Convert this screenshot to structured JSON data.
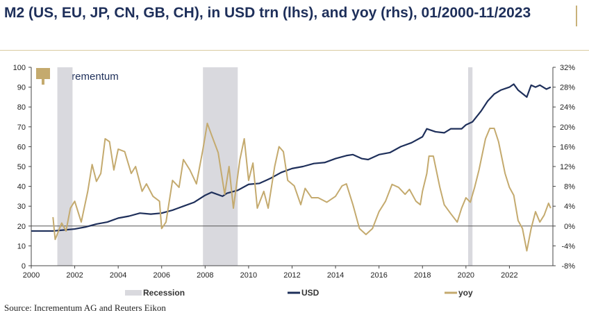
{
  "title": "M2 (US, EU, JP, CN, GB, CH), in USD trn (lhs), and yoy (rhs), 01/2000-11/2023",
  "source": "Source: Incrementum AG and Reuters Eikon",
  "logo_text": "incrementum",
  "colors": {
    "usd": "#1e2f5a",
    "yoy": "#c4aa6e",
    "recession": "#d9d9de",
    "title": "#1e2f5a"
  },
  "chart_data": {
    "type": "line",
    "title": "M2 (US, EU, JP, CN, GB, CH), in USD trn (lhs), and yoy (rhs), 01/2000-11/2023",
    "xlim": [
      2000,
      2024
    ],
    "x_ticks": [
      "2000",
      "2002",
      "2004",
      "2006",
      "2008",
      "2010",
      "2012",
      "2014",
      "2016",
      "2018",
      "2020",
      "2022"
    ],
    "ylim_left": [
      0,
      100
    ],
    "y_ticks_left": [
      "0",
      "10",
      "20",
      "30",
      "40",
      "50",
      "60",
      "70",
      "80",
      "90",
      "100"
    ],
    "ylim_right": [
      -8,
      32
    ],
    "y_ticks_right": [
      "-8%",
      "-4%",
      "0%",
      "4%",
      "8%",
      "12%",
      "16%",
      "20%",
      "24%",
      "28%",
      "32%"
    ],
    "legend": {
      "position": "bottom",
      "entries": [
        "Recession",
        "USD",
        "yoy"
      ]
    },
    "recessions": [
      [
        2001.2,
        2001.9
      ],
      [
        2007.9,
        2009.5
      ],
      [
        2020.1,
        2020.3
      ]
    ],
    "series": [
      {
        "name": "USD",
        "axis": "left",
        "points": [
          [
            2000,
            17.5
          ],
          [
            2001,
            17.5
          ],
          [
            2001.5,
            18
          ],
          [
            2002,
            18.5
          ],
          [
            2002.5,
            19.5
          ],
          [
            2003,
            21
          ],
          [
            2003.5,
            22
          ],
          [
            2004,
            24
          ],
          [
            2004.5,
            25
          ],
          [
            2005,
            26.5
          ],
          [
            2005.5,
            26
          ],
          [
            2006,
            26.5
          ],
          [
            2006.5,
            28
          ],
          [
            2007,
            30
          ],
          [
            2007.5,
            32
          ],
          [
            2008,
            35.5
          ],
          [
            2008.3,
            37
          ],
          [
            2008.8,
            35
          ],
          [
            2009,
            36.5
          ],
          [
            2009.5,
            38
          ],
          [
            2010,
            41
          ],
          [
            2010.5,
            41.5
          ],
          [
            2011,
            44
          ],
          [
            2011.5,
            47
          ],
          [
            2012,
            49
          ],
          [
            2012.5,
            50
          ],
          [
            2013,
            51.5
          ],
          [
            2013.5,
            52
          ],
          [
            2014,
            54
          ],
          [
            2014.5,
            55.5
          ],
          [
            2014.8,
            56
          ],
          [
            2015.2,
            54
          ],
          [
            2015.5,
            53.5
          ],
          [
            2016,
            56
          ],
          [
            2016.5,
            57
          ],
          [
            2017,
            60
          ],
          [
            2017.5,
            62
          ],
          [
            2018,
            65
          ],
          [
            2018.2,
            69
          ],
          [
            2018.6,
            67.5
          ],
          [
            2019,
            67
          ],
          [
            2019.3,
            69
          ],
          [
            2019.8,
            69
          ],
          [
            2020,
            71
          ],
          [
            2020.3,
            72.5
          ],
          [
            2020.7,
            78
          ],
          [
            2021,
            83
          ],
          [
            2021.3,
            86.5
          ],
          [
            2021.6,
            88.5
          ],
          [
            2022,
            90
          ],
          [
            2022.2,
            91.5
          ],
          [
            2022.4,
            88.5
          ],
          [
            2022.8,
            85
          ],
          [
            2023,
            91
          ],
          [
            2023.2,
            90
          ],
          [
            2023.4,
            91
          ],
          [
            2023.7,
            89
          ],
          [
            2023.9,
            90
          ]
        ]
      },
      {
        "name": "yoy",
        "axis": "right",
        "points": [
          [
            2001,
            1.8
          ],
          [
            2001.1,
            -2.7
          ],
          [
            2001.4,
            0.6
          ],
          [
            2001.6,
            -1
          ],
          [
            2001.8,
            3.6
          ],
          [
            2002,
            5
          ],
          [
            2002.3,
            0.8
          ],
          [
            2002.6,
            7
          ],
          [
            2002.8,
            12.4
          ],
          [
            2003,
            9
          ],
          [
            2003.2,
            10.6
          ],
          [
            2003.4,
            17.6
          ],
          [
            2003.6,
            17
          ],
          [
            2003.8,
            11.3
          ],
          [
            2004,
            15.5
          ],
          [
            2004.3,
            15
          ],
          [
            2004.6,
            10.6
          ],
          [
            2004.8,
            12
          ],
          [
            2005.1,
            7
          ],
          [
            2005.3,
            8.5
          ],
          [
            2005.6,
            6
          ],
          [
            2005.9,
            5
          ],
          [
            2006,
            -0.5
          ],
          [
            2006.2,
            0.8
          ],
          [
            2006.5,
            9.2
          ],
          [
            2006.8,
            7.8
          ],
          [
            2007,
            13.4
          ],
          [
            2007.3,
            11.3
          ],
          [
            2007.6,
            8.5
          ],
          [
            2007.9,
            15.5
          ],
          [
            2008.1,
            20.7
          ],
          [
            2008.3,
            18.3
          ],
          [
            2008.6,
            14.8
          ],
          [
            2008.9,
            6.4
          ],
          [
            2009.1,
            12
          ],
          [
            2009.3,
            3.6
          ],
          [
            2009.6,
            13.4
          ],
          [
            2009.8,
            17.6
          ],
          [
            2010,
            9.2
          ],
          [
            2010.2,
            12.7
          ],
          [
            2010.4,
            3.6
          ],
          [
            2010.7,
            7
          ],
          [
            2010.9,
            3.6
          ],
          [
            2011.2,
            12
          ],
          [
            2011.4,
            16
          ],
          [
            2011.6,
            15
          ],
          [
            2011.8,
            9.2
          ],
          [
            2012.1,
            8.1
          ],
          [
            2012.4,
            4.3
          ],
          [
            2012.6,
            7.6
          ],
          [
            2012.9,
            5.7
          ],
          [
            2013.2,
            5.7
          ],
          [
            2013.6,
            4.8
          ],
          [
            2014,
            6
          ],
          [
            2014.3,
            8.1
          ],
          [
            2014.5,
            8.5
          ],
          [
            2014.8,
            4.3
          ],
          [
            2015.1,
            -0.5
          ],
          [
            2015.4,
            -1.7
          ],
          [
            2015.7,
            -0.5
          ],
          [
            2016,
            2.9
          ],
          [
            2016.3,
            5
          ],
          [
            2016.6,
            8.4
          ],
          [
            2016.9,
            7.8
          ],
          [
            2017.2,
            6.4
          ],
          [
            2017.4,
            7.4
          ],
          [
            2017.7,
            5
          ],
          [
            2017.9,
            4.3
          ],
          [
            2018,
            7
          ],
          [
            2018.2,
            10.6
          ],
          [
            2018.3,
            14.1
          ],
          [
            2018.5,
            14.1
          ],
          [
            2018.8,
            7.8
          ],
          [
            2019,
            4.3
          ],
          [
            2019.3,
            2.5
          ],
          [
            2019.6,
            0.8
          ],
          [
            2019.8,
            3.6
          ],
          [
            2020,
            5.7
          ],
          [
            2020.2,
            4.8
          ],
          [
            2020.4,
            7.8
          ],
          [
            2020.6,
            11.3
          ],
          [
            2020.9,
            17.6
          ],
          [
            2021.1,
            19.7
          ],
          [
            2021.3,
            19.7
          ],
          [
            2021.5,
            17
          ],
          [
            2021.8,
            10.6
          ],
          [
            2022,
            7.8
          ],
          [
            2022.2,
            6.2
          ],
          [
            2022.4,
            1.1
          ],
          [
            2022.6,
            -0.5
          ],
          [
            2022.8,
            -5
          ],
          [
            2023,
            -0.5
          ],
          [
            2023.2,
            2.9
          ],
          [
            2023.4,
            0.8
          ],
          [
            2023.6,
            2.2
          ],
          [
            2023.8,
            4.6
          ],
          [
            2023.9,
            3.6
          ]
        ]
      }
    ]
  }
}
